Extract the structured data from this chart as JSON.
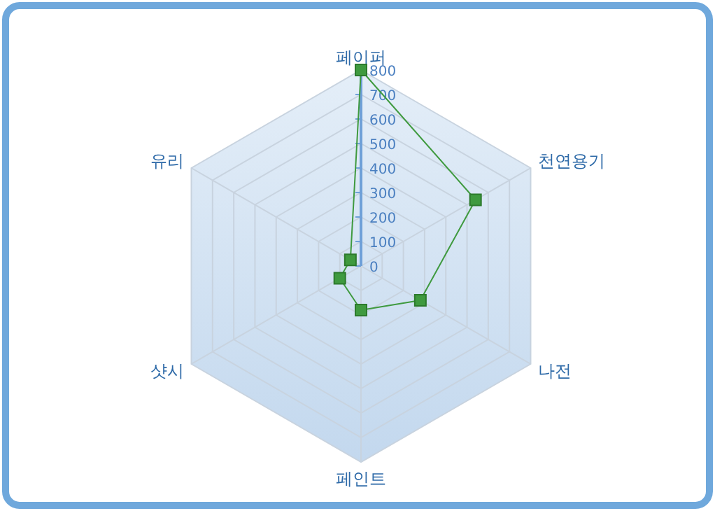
{
  "chart_data": {
    "type": "radar",
    "categories": [
      "페이퍼",
      "천연용기",
      "나전",
      "페인트",
      "샷시",
      "유리"
    ],
    "series": [
      {
        "color": "#3f9a3f",
        "values": [
          800,
          540,
          280,
          180,
          100,
          50
        ]
      }
    ],
    "ylim": [
      0,
      800
    ],
    "yticks": [
      0,
      100,
      200,
      300,
      400,
      500,
      600,
      700,
      800
    ],
    "grid": true,
    "marker": "square",
    "line_style": "solid"
  }
}
